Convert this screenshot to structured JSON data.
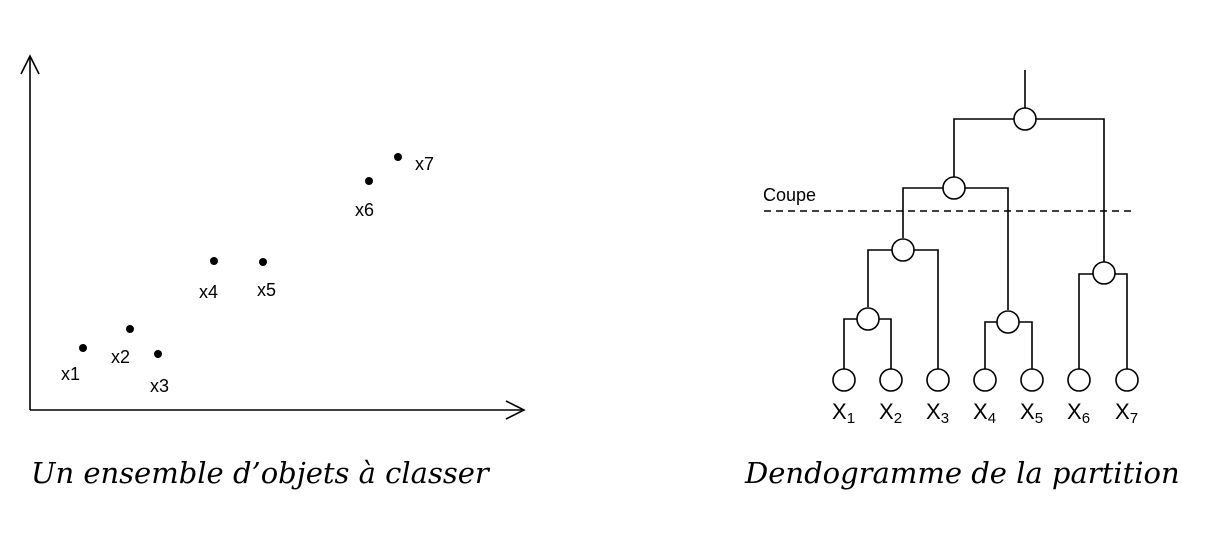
{
  "scatter": {
    "caption": "Un ensemble d’objets à classer",
    "points": [
      {
        "id": "x1",
        "label": "x1"
      },
      {
        "id": "x2",
        "label": "x2"
      },
      {
        "id": "x3",
        "label": "x3"
      },
      {
        "id": "x4",
        "label": "x4"
      },
      {
        "id": "x5",
        "label": "x5"
      },
      {
        "id": "x6",
        "label": "x6"
      },
      {
        "id": "x7",
        "label": "x7"
      }
    ]
  },
  "dendrogram": {
    "caption": "Dendogramme de la partition",
    "cut_label": "Coupe",
    "leaves": [
      {
        "letter": "X",
        "sub": "1"
      },
      {
        "letter": "X",
        "sub": "2"
      },
      {
        "letter": "X",
        "sub": "3"
      },
      {
        "letter": "X",
        "sub": "4"
      },
      {
        "letter": "X",
        "sub": "5"
      },
      {
        "letter": "X",
        "sub": "6"
      },
      {
        "letter": "X",
        "sub": "7"
      }
    ]
  }
}
